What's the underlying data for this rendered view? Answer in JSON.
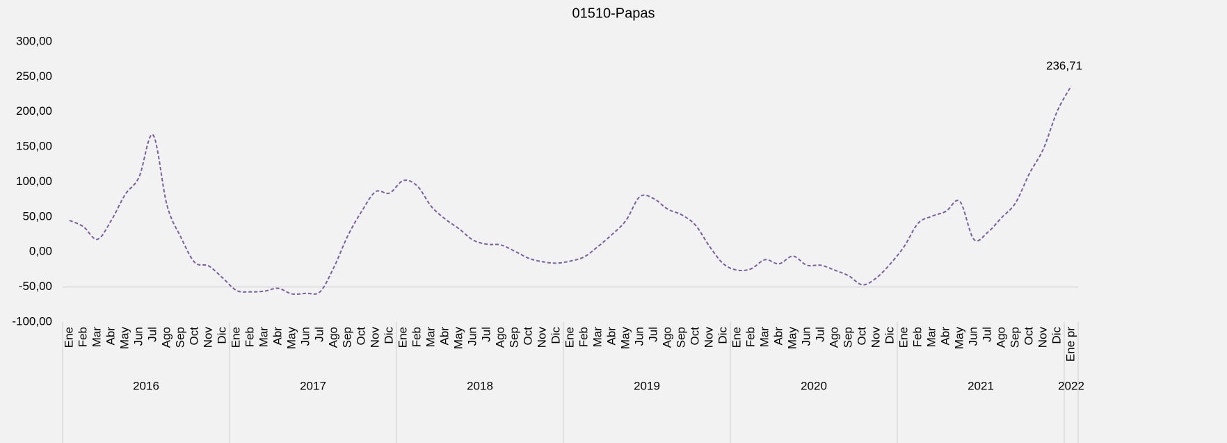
{
  "chart_data": {
    "type": "line",
    "title": "01510-Papas",
    "category_groups": [
      {
        "label": "2016",
        "categories": [
          "Ene",
          "Feb",
          "Mar",
          "Abr",
          "May",
          "Jun",
          "Jul",
          "Ago",
          "Sep",
          "Oct",
          "Nov",
          "Dic"
        ]
      },
      {
        "label": "2017",
        "categories": [
          "Ene",
          "Feb",
          "Mar",
          "Abr",
          "May",
          "Jun",
          "Jul",
          "Ago",
          "Sep",
          "Oct",
          "Nov",
          "Dic"
        ]
      },
      {
        "label": "2018",
        "categories": [
          "Ene",
          "Feb",
          "Mar",
          "Abr",
          "May",
          "Jun",
          "Jul",
          "Ago",
          "Sep",
          "Oct",
          "Nov",
          "Dic"
        ]
      },
      {
        "label": "2019",
        "categories": [
          "Ene",
          "Feb",
          "Mar",
          "Abr",
          "May",
          "Jun",
          "Jul",
          "Ago",
          "Sep",
          "Oct",
          "Nov",
          "Dic"
        ]
      },
      {
        "label": "2020",
        "categories": [
          "Ene",
          "Feb",
          "Mar",
          "Abr",
          "May",
          "Jun",
          "Jul",
          "Ago",
          "Sep",
          "Oct",
          "Nov",
          "Dic"
        ]
      },
      {
        "label": "2021",
        "categories": [
          "Ene",
          "Feb",
          "Mar",
          "Abr",
          "May",
          "Jun",
          "Jul",
          "Ago",
          "Sep",
          "Oct",
          "Nov",
          "Dic"
        ]
      },
      {
        "label": "2022",
        "categories": [
          "Ene pr"
        ]
      }
    ],
    "series": [
      {
        "color": "#7a5fa0",
        "dashed": true,
        "smooth": true,
        "values": [
          45,
          36,
          18,
          45,
          82,
          107,
          167,
          67,
          21,
          -15,
          -20,
          -37,
          -55,
          -57,
          -56,
          -52,
          -60,
          -59,
          -57,
          -22,
          23,
          58,
          86,
          84,
          102,
          94,
          65,
          47,
          33,
          17,
          11,
          10,
          1,
          -9,
          -14,
          -16,
          -13,
          -7,
          8,
          25,
          45,
          79,
          76,
          61,
          53,
          38,
          8,
          -17,
          -26,
          -24,
          -11,
          -17,
          -6,
          -19,
          -19,
          -26,
          -34,
          -47,
          -37,
          -17,
          8,
          41,
          51,
          58,
          72,
          18,
          28,
          49,
          70,
          112,
          147,
          201,
          236.71
        ],
        "value_labels": [
          null,
          null,
          null,
          null,
          null,
          null,
          null,
          null,
          null,
          null,
          null,
          null,
          null,
          null,
          null,
          null,
          null,
          null,
          null,
          null,
          null,
          null,
          null,
          null,
          null,
          null,
          null,
          null,
          null,
          null,
          null,
          null,
          null,
          null,
          null,
          null,
          null,
          null,
          null,
          null,
          null,
          null,
          null,
          null,
          null,
          null,
          null,
          null,
          null,
          null,
          null,
          null,
          null,
          null,
          null,
          null,
          null,
          null,
          null,
          null,
          null,
          null,
          null,
          null,
          null,
          null,
          null,
          null,
          null,
          null,
          null,
          null,
          "236,71"
        ]
      }
    ],
    "ylim": [
      -100,
      300
    ],
    "yticks": [
      {
        "value": -100,
        "label": "-100,00"
      },
      {
        "value": -50,
        "label": "-50,00"
      },
      {
        "value": 0,
        "label": "0,00"
      },
      {
        "value": 50,
        "label": "50,00"
      },
      {
        "value": 100,
        "label": "100,00"
      },
      {
        "value": 150,
        "label": "150,00"
      },
      {
        "value": 200,
        "label": "200,00"
      },
      {
        "value": 250,
        "label": "250,00"
      },
      {
        "value": 300,
        "label": "300,00"
      }
    ],
    "x_axis_crosses_at": -50,
    "grid": false
  }
}
